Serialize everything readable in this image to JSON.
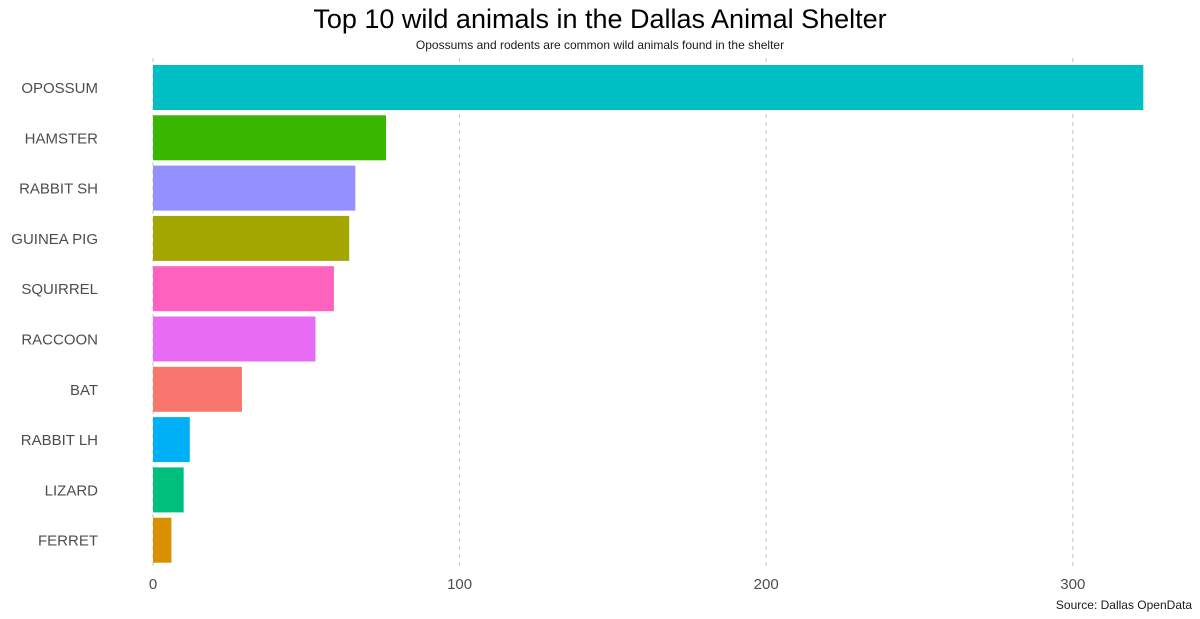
{
  "title": "Top 10 wild animals in the Dallas Animal Shelter",
  "subtitle": "Opossums and rodents are common wild animals found in the shelter",
  "caption": "Source: Dallas OpenData",
  "chart_data": {
    "type": "bar",
    "orientation": "horizontal",
    "categories": [
      "OPOSSUM",
      "HAMSTER",
      "RABBIT SH",
      "GUINEA PIG",
      "SQUIRREL",
      "RACCOON",
      "BAT",
      "RABBIT LH",
      "LIZARD",
      "FERRET"
    ],
    "values": [
      323,
      76,
      66,
      64,
      59,
      53,
      29,
      12,
      10,
      6
    ],
    "colors": [
      "#00BFC4",
      "#39B600",
      "#9590FF",
      "#A3A500",
      "#FF62BC",
      "#E76BF3",
      "#F8766D",
      "#00B0F6",
      "#00BF7D",
      "#D89000"
    ],
    "xlim": [
      0,
      325
    ],
    "xticks": [
      0,
      100,
      200,
      300
    ],
    "xlabel": "",
    "ylabel": "",
    "grid": "vertical dashed",
    "legend": "none"
  }
}
